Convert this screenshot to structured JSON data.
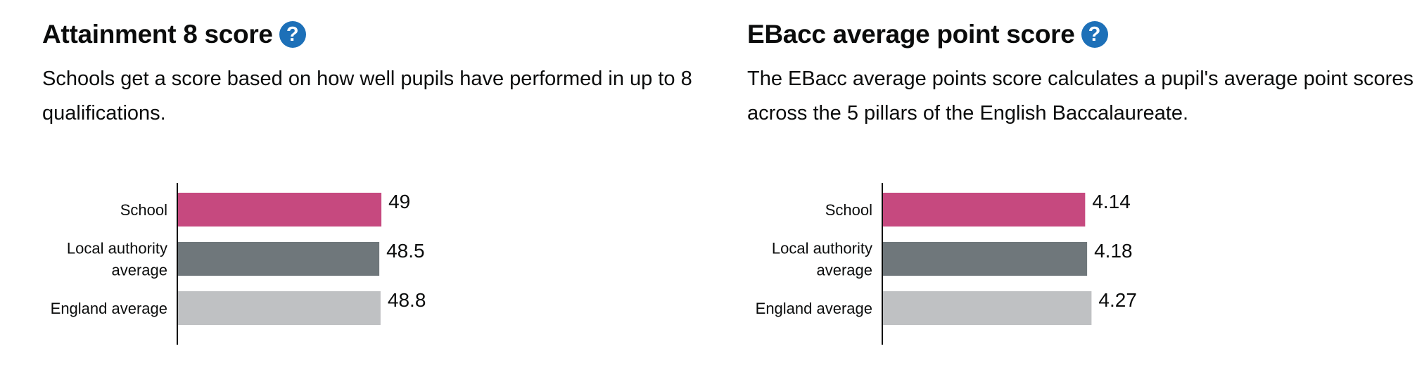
{
  "colors": {
    "school": "#c6497f",
    "local_authority": "#6f777b",
    "england": "#bfc1c3",
    "help_icon": "#1d70b8"
  },
  "icons": {
    "help": "question-mark-circle-icon"
  },
  "help_glyph": "?",
  "chart_data": [
    {
      "type": "bar",
      "orientation": "horizontal",
      "title": "Attainment 8 score",
      "subtitle": "Schools get a score based on how well pupils have performed in up to 8 qualifications.",
      "categories": [
        "School",
        "Local authority average",
        "England average"
      ],
      "category_lines": [
        [
          "School"
        ],
        [
          "Local authority",
          "average"
        ],
        [
          "England average"
        ]
      ],
      "values": [
        49,
        48.5,
        48.8
      ],
      "value_labels": [
        "49",
        "48.5",
        "48.8"
      ],
      "xlim": [
        0,
        100
      ],
      "grid": false,
      "legend": "none"
    },
    {
      "type": "bar",
      "orientation": "horizontal",
      "title": "EBacc average point score",
      "subtitle": "The EBacc average points score calculates a pupil's average point scores across the 5 pillars of the English Baccalaureate.",
      "categories": [
        "School",
        "Local authority average",
        "England average"
      ],
      "category_lines": [
        [
          "School"
        ],
        [
          "Local authority",
          "average"
        ],
        [
          "England average"
        ]
      ],
      "values": [
        4.14,
        4.18,
        4.27
      ],
      "value_labels": [
        "4.14",
        "4.18",
        "4.27"
      ],
      "xlim": [
        0,
        8.5
      ],
      "grid": false,
      "legend": "none"
    }
  ]
}
